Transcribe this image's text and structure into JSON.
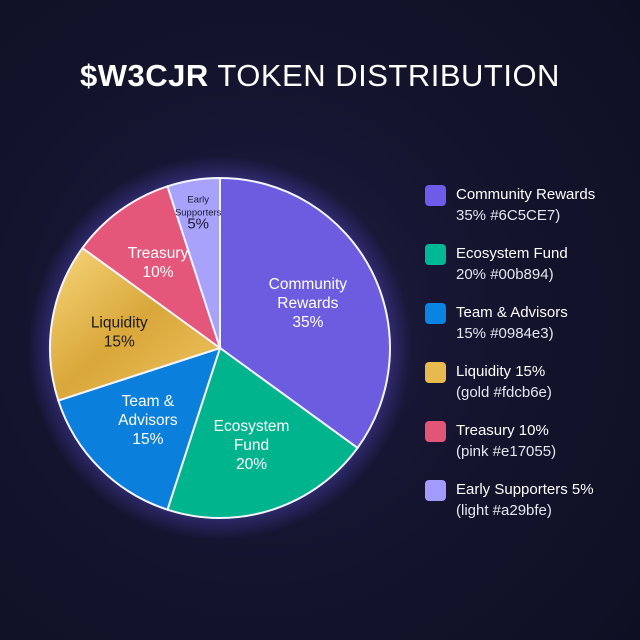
{
  "title": {
    "bold": "$W3CJR",
    "rest": "TOKEN DISTRIBUTION"
  },
  "chart_data": {
    "type": "pie",
    "title": "$W3CJR TOKEN DISTRIBUTION",
    "legend_placement": "right",
    "slices": [
      {
        "label": "Community Rewards",
        "label_lines": [
          "Community",
          "Rewards",
          "35%"
        ],
        "value": 35,
        "color": "#6c5ce7"
      },
      {
        "label": "Ecosystem Fund",
        "label_lines": [
          "Ecosystem",
          "Fund",
          "20%"
        ],
        "value": 20,
        "color": "#00b894"
      },
      {
        "label": "Team & Advisors",
        "label_lines": [
          "Team &",
          "Advisors",
          "15%"
        ],
        "value": 15,
        "color": "#0984e3"
      },
      {
        "label": "Liquidity",
        "label_lines": [
          "Liquidity",
          "15%"
        ],
        "value": 15,
        "color": "#fdcb6e"
      },
      {
        "label": "Treasury",
        "label_lines": [
          "Treasury",
          "10%"
        ],
        "value": 10,
        "color": "#e17055"
      },
      {
        "label": "Early Supporters",
        "label_lines": [
          "Early",
          "Supporters",
          "5%"
        ],
        "value": 5,
        "color": "#a29bfe"
      }
    ]
  },
  "legend": [
    {
      "line1": "Community Rewards",
      "line2": "35% #6C5CE7)",
      "color": "#6c5ce7"
    },
    {
      "line1": "Ecosystem Fund",
      "line2": "20% #00b894)",
      "color": "#00b894"
    },
    {
      "line1": "Team & Advisors",
      "line2": "15% #0984e3)",
      "color": "#0984e3"
    },
    {
      "line1": "Liquidity 15%",
      "line2": "(gold #fdcb6e)",
      "color": "#e8b94e"
    },
    {
      "line1": "Treasury 10%",
      "line2": "(pink #e17055)",
      "color": "#e25577"
    },
    {
      "line1": "Early Supporters 5%",
      "line2": "(light #a29bfe)",
      "color": "#a29bfe"
    }
  ]
}
